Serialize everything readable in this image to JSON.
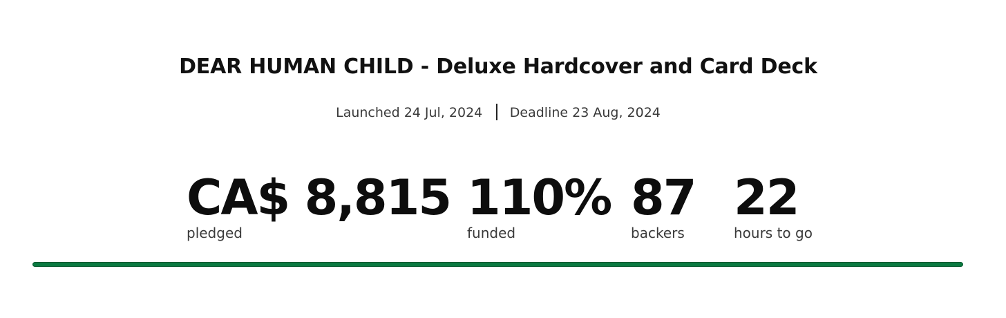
{
  "project": {
    "title": "DEAR HUMAN CHILD - Deluxe Hardcover and Card Deck",
    "launched": "Launched 24 Jul, 2024",
    "deadline": "Deadline 23 Aug, 2024"
  },
  "stats": {
    "pledged": {
      "value": "CA$ 8,815",
      "label": "pledged"
    },
    "funded": {
      "value": "110%",
      "label": "funded"
    },
    "backers": {
      "value": "87",
      "label": "backers"
    },
    "time_left": {
      "value": "22",
      "label": "hours to go"
    }
  },
  "progress": {
    "percent": 100,
    "color": "#0b7a41"
  }
}
